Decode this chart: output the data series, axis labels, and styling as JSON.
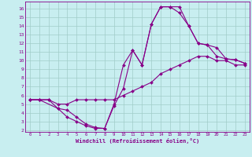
{
  "xlabel": "Windchill (Refroidissement éolien,°C)",
  "bg_color": "#c8eef0",
  "line_color": "#880088",
  "grid_color": "#a0ccc8",
  "spine_color": "#880088",
  "line1_x": [
    0,
    1,
    2,
    3,
    4,
    5,
    6,
    7,
    8,
    9,
    10,
    11,
    12,
    13,
    14,
    15,
    16,
    17,
    18,
    19,
    20,
    21,
    22,
    23
  ],
  "line1_y": [
    5.5,
    5.5,
    5.5,
    5.0,
    5.0,
    5.5,
    5.5,
    5.5,
    5.5,
    5.5,
    6.0,
    6.5,
    7.0,
    7.5,
    8.5,
    9.0,
    9.5,
    10.0,
    10.5,
    10.5,
    10.0,
    10.0,
    9.5,
    9.5
  ],
  "line2_x": [
    0,
    1,
    3,
    4,
    5,
    6,
    7,
    8,
    9,
    10,
    11,
    12,
    13,
    14,
    15,
    16,
    17,
    18,
    19,
    20,
    21,
    22,
    23
  ],
  "line2_y": [
    5.5,
    5.5,
    4.5,
    4.3,
    3.5,
    2.7,
    2.3,
    2.2,
    5.0,
    9.5,
    11.2,
    9.5,
    14.2,
    16.2,
    16.2,
    15.5,
    14.0,
    12.0,
    11.8,
    10.5,
    10.2,
    10.1,
    9.7
  ],
  "line3_x": [
    0,
    1,
    2,
    3,
    4,
    5,
    6,
    7,
    8,
    9,
    10,
    11,
    12,
    13,
    14,
    15,
    16,
    17,
    18,
    19,
    20,
    21,
    22,
    23
  ],
  "line3_y": [
    5.5,
    5.5,
    5.5,
    4.5,
    3.5,
    3.0,
    2.5,
    2.2,
    2.2,
    4.8,
    6.8,
    11.2,
    9.5,
    14.2,
    16.2,
    16.2,
    16.2,
    14.0,
    12.0,
    11.8,
    11.5,
    10.2,
    10.1,
    9.7
  ],
  "xlim": [
    -0.5,
    23.5
  ],
  "ylim": [
    1.8,
    16.8
  ],
  "xticks": [
    0,
    1,
    2,
    3,
    4,
    5,
    6,
    7,
    8,
    9,
    10,
    11,
    12,
    13,
    14,
    15,
    16,
    17,
    18,
    19,
    20,
    21,
    22,
    23
  ],
  "yticks": [
    2,
    3,
    4,
    5,
    6,
    7,
    8,
    9,
    10,
    11,
    12,
    13,
    14,
    15,
    16
  ]
}
